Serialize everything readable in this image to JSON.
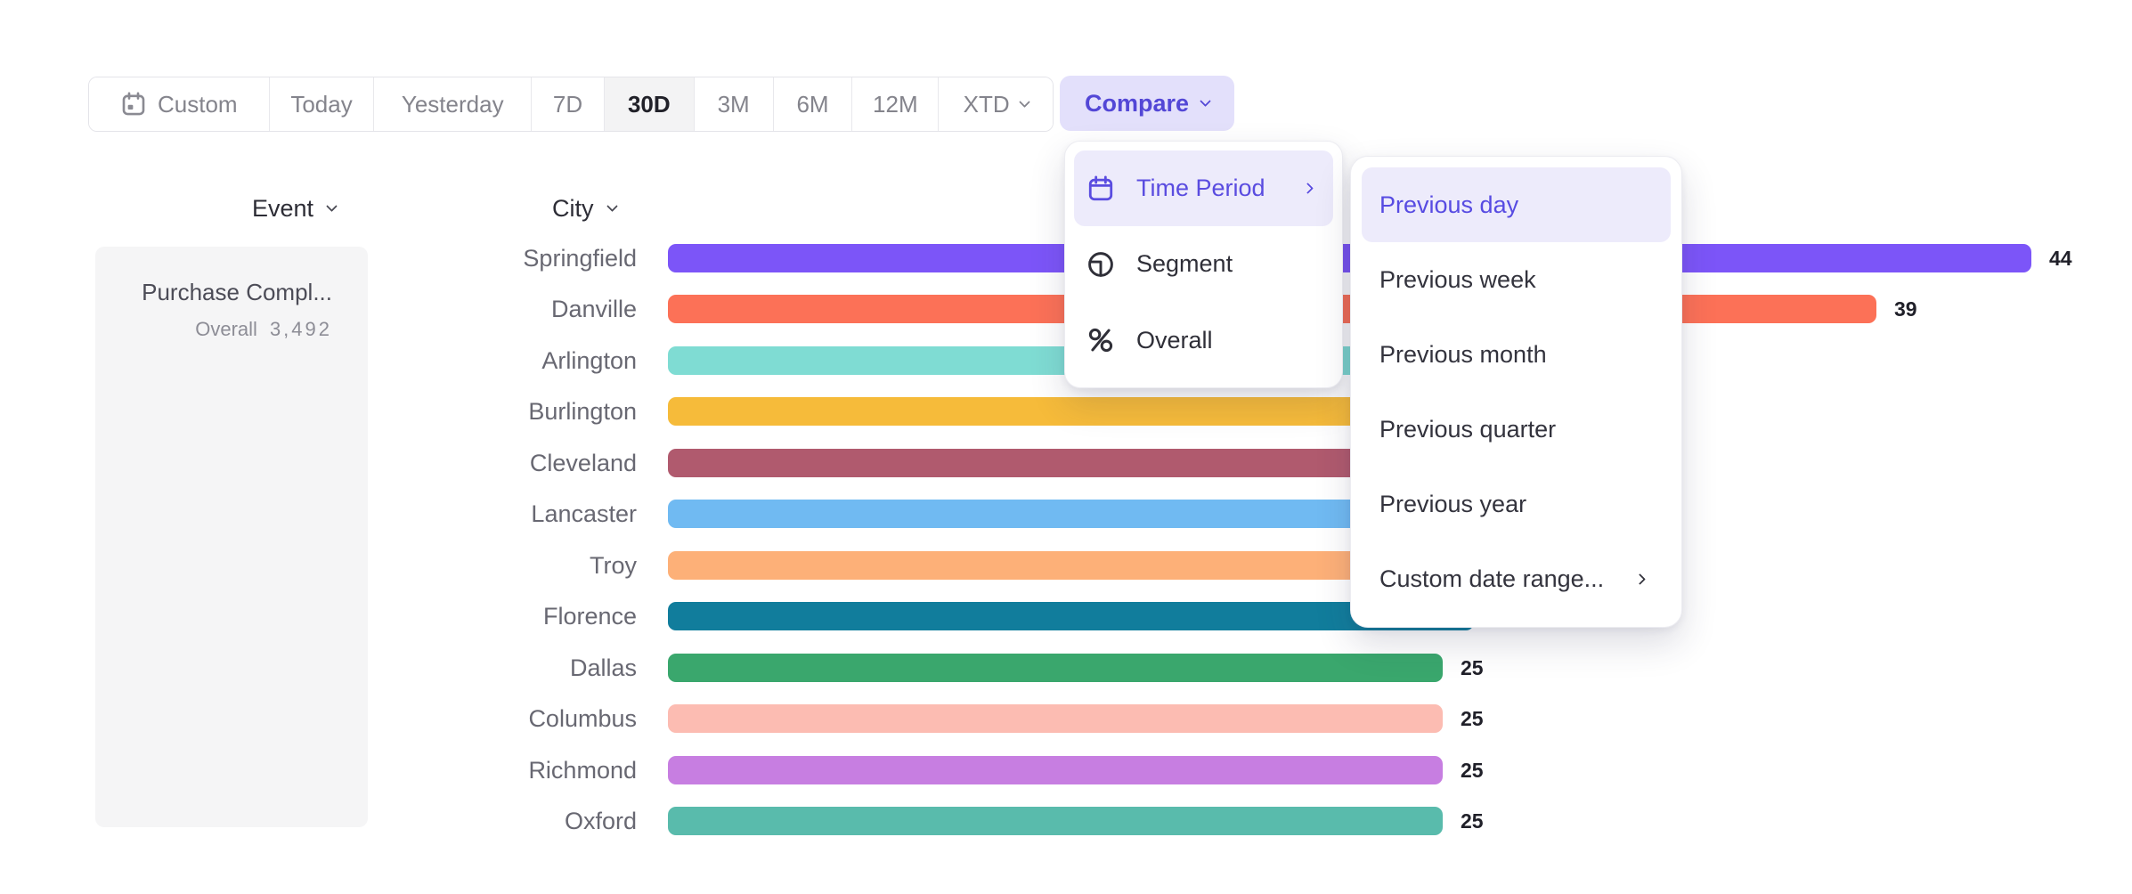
{
  "colors": {
    "accent_purple": "#5a4ce0",
    "highlight_bg": "#edebfb",
    "compare_bg": "#e3e0fb",
    "active_segment_bg": "#f3f3f4"
  },
  "toolbar": {
    "items": [
      {
        "label": "Custom",
        "icon": "calendar-icon",
        "active": false
      },
      {
        "label": "Today",
        "active": false
      },
      {
        "label": "Yesterday",
        "active": false
      },
      {
        "label": "7D",
        "active": false
      },
      {
        "label": "30D",
        "active": true
      },
      {
        "label": "3M",
        "active": false
      },
      {
        "label": "6M",
        "active": false
      },
      {
        "label": "12M",
        "active": false
      },
      {
        "label": "XTD",
        "active": false,
        "chevron": "chevron-down-icon"
      }
    ]
  },
  "compare_button": {
    "label": "Compare",
    "chevron": "chevron-down-icon"
  },
  "compare_menu": {
    "items": [
      {
        "label": "Time Period",
        "icon": "calendar-icon",
        "selected": true,
        "has_submenu": true
      },
      {
        "label": "Segment",
        "icon": "segment-icon",
        "selected": false,
        "has_submenu": false
      },
      {
        "label": "Overall",
        "icon": "percent-icon",
        "selected": false,
        "has_submenu": false
      }
    ]
  },
  "time_period_submenu": {
    "items": [
      {
        "label": "Previous day",
        "selected": true,
        "has_submenu": false
      },
      {
        "label": "Previous week",
        "selected": false,
        "has_submenu": false
      },
      {
        "label": "Previous month",
        "selected": false,
        "has_submenu": false
      },
      {
        "label": "Previous quarter",
        "selected": false,
        "has_submenu": false
      },
      {
        "label": "Previous year",
        "selected": false,
        "has_submenu": false
      },
      {
        "label": "Custom date range...",
        "selected": false,
        "has_submenu": true
      }
    ]
  },
  "event_panel": {
    "header": "Event",
    "event_name": "Purchase Compl...",
    "overall_label": "Overall",
    "overall_value": "3,492"
  },
  "chart_data": {
    "type": "bar",
    "orientation": "horizontal",
    "group_header": "City",
    "categories": [
      "Springfield",
      "Danville",
      "Arlington",
      "Burlington",
      "Cleveland",
      "Lancaster",
      "Troy",
      "Florence",
      "Dallas",
      "Columbus",
      "Richmond",
      "Oxford"
    ],
    "values": [
      44,
      39,
      30,
      29,
      28,
      27,
      26,
      26,
      25,
      25,
      25,
      25
    ],
    "value_labels": [
      "44",
      "39",
      "",
      "",
      "",
      "",
      "",
      "",
      "25",
      "25",
      "25",
      "25"
    ],
    "bar_colors": [
      "#7c55f8",
      "#fc7157",
      "#7fdcd3",
      "#f6bb3a",
      "#b05a6e",
      "#70baf2",
      "#fdb078",
      "#117d9c",
      "#3aa76d",
      "#fcbcb2",
      "#c77ee1",
      "#59bbac"
    ],
    "xlim": [
      0,
      44
    ],
    "note_labels_hidden": "values for Arlington-Florence are occluded by the open menus (estimated)"
  }
}
